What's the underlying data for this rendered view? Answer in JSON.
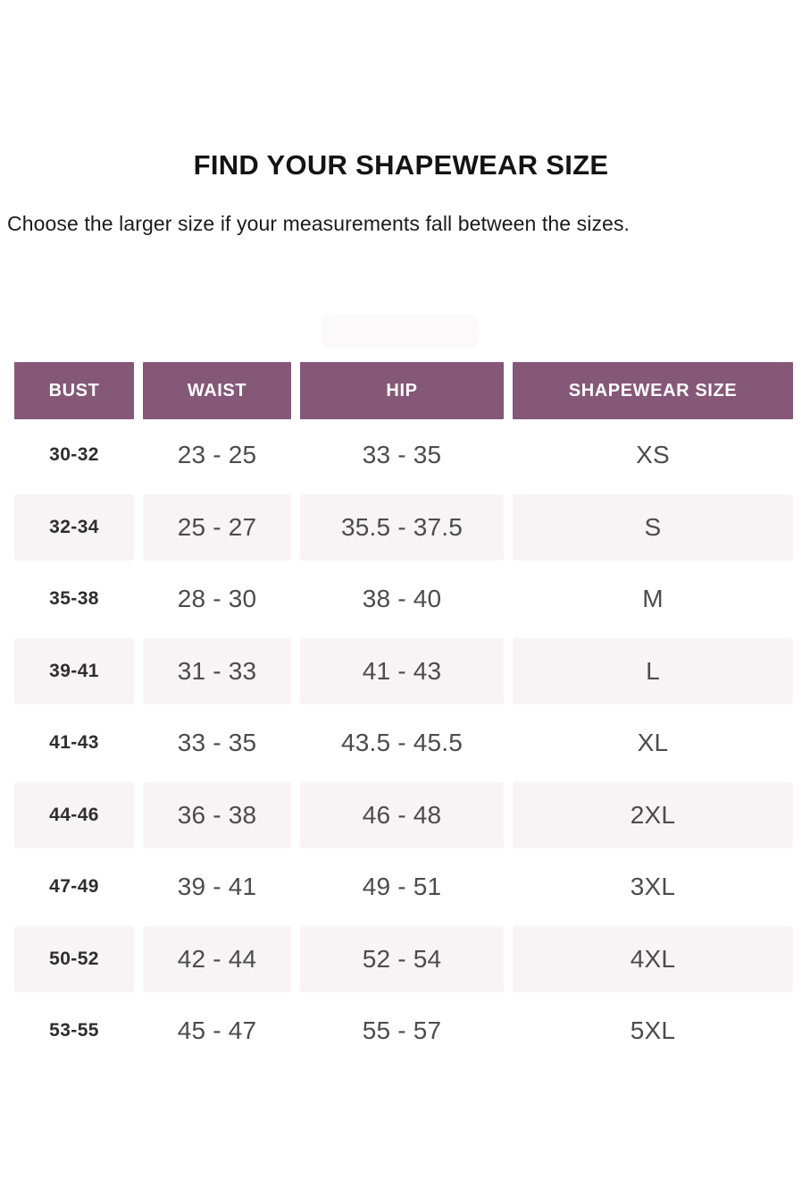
{
  "page": {
    "title": "FIND YOUR SHAPEWEAR SIZE",
    "subtitle": "Choose the larger size if your measurements fall between the sizes."
  },
  "colors": {
    "header_bg": "#855878",
    "header_text": "#ffffff",
    "row_alt_bg": "#f8f3f5",
    "value_text": "#4c4c4c",
    "bust_text": "#2e2e2e",
    "title_text": "#141414"
  },
  "table": {
    "headers": [
      "BUST",
      "WAIST",
      "HIP",
      "SHAPEWEAR SIZE"
    ],
    "rows": [
      {
        "bust": "30-32",
        "waist": "23 - 25",
        "hip": "33 - 35",
        "size": "XS"
      },
      {
        "bust": "32-34",
        "waist": "25 - 27",
        "hip": "35.5 - 37.5",
        "size": "S"
      },
      {
        "bust": "35-38",
        "waist": "28 - 30",
        "hip": "38 - 40",
        "size": "M"
      },
      {
        "bust": "39-41",
        "waist": "31 - 33",
        "hip": "41 - 43",
        "size": "L"
      },
      {
        "bust": "41-43",
        "waist": "33 - 35",
        "hip": "43.5 - 45.5",
        "size": "XL"
      },
      {
        "bust": "44-46",
        "waist": "36 - 38",
        "hip": "46 - 48",
        "size": "2XL"
      },
      {
        "bust": "47-49",
        "waist": "39 - 41",
        "hip": "49 - 51",
        "size": "3XL"
      },
      {
        "bust": "50-52",
        "waist": "42 - 44",
        "hip": "52 - 54",
        "size": "4XL"
      },
      {
        "bust": "53-55",
        "waist": "45 - 47",
        "hip": "55 - 57",
        "size": "5XL"
      }
    ]
  }
}
